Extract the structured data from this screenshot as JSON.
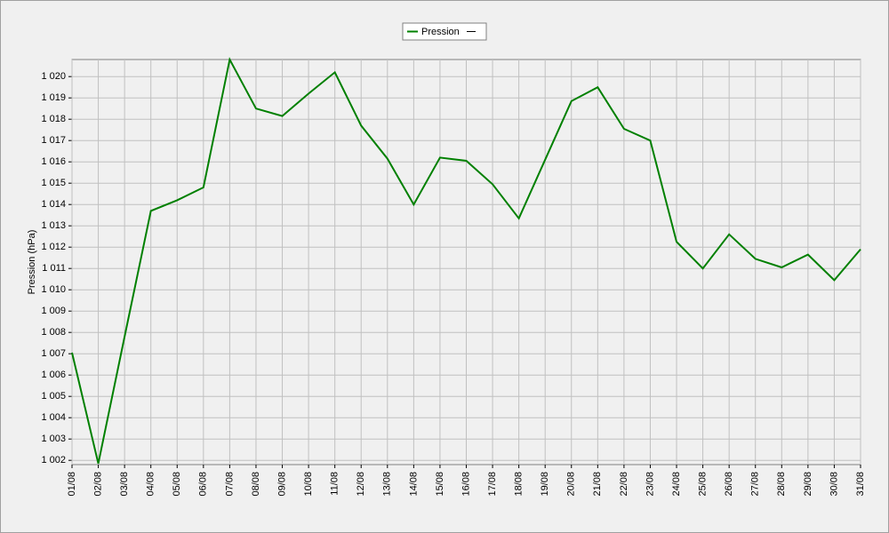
{
  "chart_data": {
    "type": "line",
    "legend": "top",
    "y_label": "Pression (hPa)",
    "categories": [
      "01/08",
      "02/08",
      "03/08",
      "04/08",
      "05/08",
      "06/08",
      "07/08",
      "08/08",
      "09/08",
      "10/08",
      "11/08",
      "12/08",
      "13/08",
      "14/08",
      "15/08",
      "16/08",
      "17/08",
      "18/08",
      "19/08",
      "20/08",
      "21/08",
      "22/08",
      "23/08",
      "24/08",
      "25/08",
      "26/08",
      "27/08",
      "28/08",
      "29/08",
      "30/08",
      "31/08"
    ],
    "series": [
      {
        "name": "Pression",
        "color": "#008000",
        "values": [
          1007.05,
          1001.85,
          1007.8,
          1013.7,
          1014.2,
          1014.8,
          1020.8,
          1018.5,
          1018.15,
          1019.2,
          1020.2,
          1017.7,
          1016.15,
          1014,
          1016.2,
          1016.05,
          1014.95,
          1013.35,
          1016.1,
          1018.85,
          1019.5,
          1017.55,
          1017,
          1012.25,
          1011,
          1012.6,
          1011.45,
          1011.05,
          1011.65,
          1010.45,
          1011.9
        ]
      }
    ],
    "ylim": [
      1001.8,
      1020.8
    ],
    "yticks": [
      {
        "value": 1002,
        "label": "1 002"
      },
      {
        "value": 1003,
        "label": "1 003"
      },
      {
        "value": 1004,
        "label": "1 004"
      },
      {
        "value": 1005,
        "label": "1 005"
      },
      {
        "value": 1006,
        "label": "1 006"
      },
      {
        "value": 1007,
        "label": "1 007"
      },
      {
        "value": 1008,
        "label": "1 008"
      },
      {
        "value": 1009,
        "label": "1 009"
      },
      {
        "value": 1010,
        "label": "1 010"
      },
      {
        "value": 1011,
        "label": "1 011"
      },
      {
        "value": 1012,
        "label": "1 012"
      },
      {
        "value": 1013,
        "label": "1 013"
      },
      {
        "value": 1014,
        "label": "1 014"
      },
      {
        "value": 1015,
        "label": "1 015"
      },
      {
        "value": 1016,
        "label": "1 016"
      },
      {
        "value": 1017,
        "label": "1 017"
      },
      {
        "value": 1018,
        "label": "1 018"
      },
      {
        "value": 1019,
        "label": "1 019"
      },
      {
        "value": 1020,
        "label": "1 020"
      }
    ],
    "grid": true
  }
}
